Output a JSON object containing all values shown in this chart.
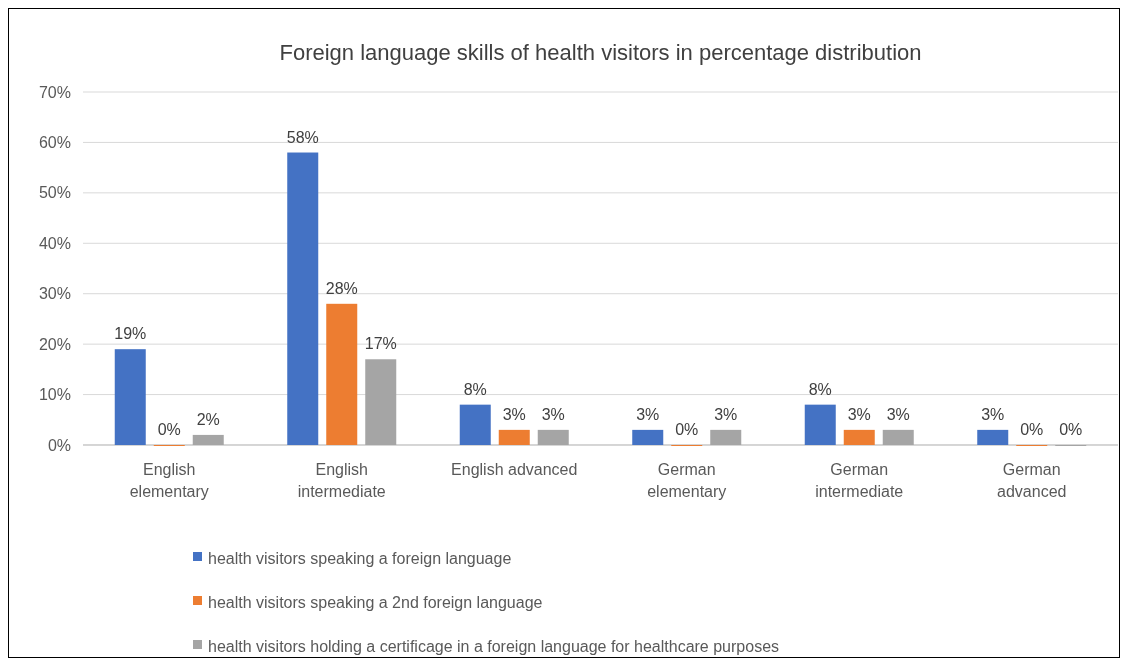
{
  "chart_data": {
    "type": "bar",
    "title": "Foreign language skills of health visitors in percentage distribution",
    "categories": [
      "English\nelementary",
      "English\nintermediate",
      "English advanced",
      "German\nelementary",
      "German\nintermediate",
      "German\nadvanced"
    ],
    "series": [
      {
        "name": "health visitors speaking a foreign language",
        "color": "#4472c4",
        "values": [
          19,
          58,
          8,
          3,
          8,
          3
        ],
        "value_labels": [
          "19%",
          "58%",
          "8%",
          "3%",
          "8%",
          "3%"
        ]
      },
      {
        "name": "health visitors speaking a 2nd foreign language",
        "color": "#ed7d31",
        "values": [
          0,
          28,
          3,
          0,
          3,
          0
        ],
        "value_labels": [
          "0%",
          "28%",
          "3%",
          "0%",
          "3%",
          "0%"
        ]
      },
      {
        "name": "health visitors holding a certificage in a foreign language for healthcare purposes",
        "color": "#a5a5a5",
        "values": [
          2,
          17,
          3,
          3,
          3,
          0
        ],
        "value_labels": [
          "2%",
          "17%",
          "3%",
          "3%",
          "3%",
          "0%"
        ]
      }
    ],
    "ylim": [
      0,
      70
    ],
    "yticks": [
      {
        "value": 0,
        "label": "0%"
      },
      {
        "value": 10,
        "label": "10%"
      },
      {
        "value": 20,
        "label": "20%"
      },
      {
        "value": 30,
        "label": "30%"
      },
      {
        "value": 40,
        "label": "40%"
      },
      {
        "value": 50,
        "label": "50%"
      },
      {
        "value": 60,
        "label": "60%"
      },
      {
        "value": 70,
        "label": "70%"
      }
    ],
    "grid": "y",
    "legend": "bottom"
  }
}
